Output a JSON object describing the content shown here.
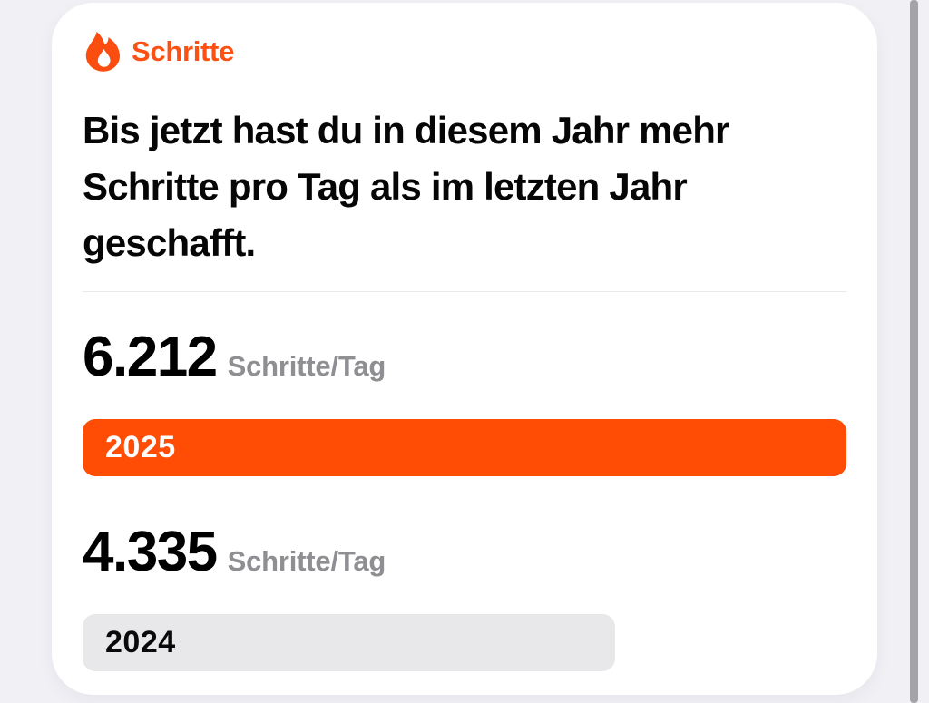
{
  "theme": {
    "background_color": "#F1F0F5",
    "card_color": "#FFFFFF",
    "accent_orange": "#FC5114",
    "bar_orange": "#FF4D05",
    "bar_gray": "#E8E8EA",
    "unit_gray": "#8E8E93",
    "divider_color": "#EBEBED",
    "scrollbar_thumb_color": "#A3A3A8"
  },
  "card": {
    "header": {
      "icon": "flame-icon",
      "title": "Schritte"
    },
    "headline": "Bis jetzt hast du in diesem Jahr mehr Schritte pro Tag als im letzten Jahr geschafft.",
    "stats": [
      {
        "value": "6.212",
        "unit": "Schritte/Tag",
        "year": "2025",
        "bar_width_pct": 100,
        "bar_color": "#FF4D05",
        "label_color": "#FFFFFF"
      },
      {
        "value": "4.335",
        "unit": "Schritte/Tag",
        "year": "2024",
        "bar_width_pct": 69.7,
        "bar_color": "#E8E8EA",
        "label_color": "#0A0A0A"
      }
    ],
    "chart_data": {
      "type": "bar",
      "categories": [
        "2025",
        "2024"
      ],
      "values": [
        6212,
        4335
      ],
      "title": "Schritte",
      "ylabel": "Schritte/Tag"
    }
  }
}
